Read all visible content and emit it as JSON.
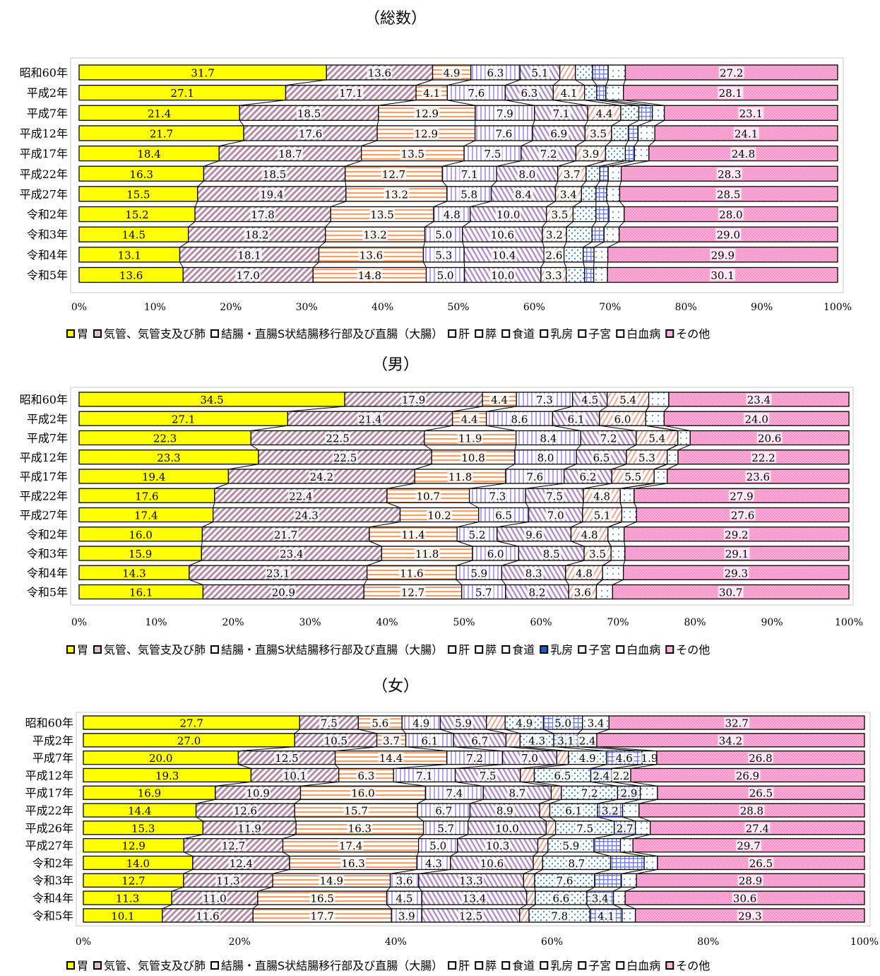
{
  "series_names": [
    "胃",
    "気管、気管支及び肺",
    "結腸・直腸S状結腸移行部及び直腸（大腸）",
    "肝",
    "膵",
    "食道",
    "乳房",
    "子宮",
    "白血病",
    "その他"
  ],
  "series_colors": [
    "#ffff00",
    "#ddbfd2",
    "#ffd5b8",
    "#e0d6ff",
    "#ecd9f2",
    "#fbe0d6",
    "#c9dcf7",
    "#d7e5ff",
    "#f4f4f4",
    "#ffb3d9"
  ],
  "legend_swatch_colors": [
    [
      "#ffff00",
      "#ddbfd2",
      "#ffffff",
      "#ffffff",
      "#ffffff",
      "#ffffff",
      "#ffffff",
      "#ffffff",
      "#ffffff",
      "#ffb3d9"
    ],
    [
      "#ffff00",
      "#ddbfd2",
      "#ffffff",
      "#ffffff",
      "#ffffff",
      "#ffffff",
      "#1f5fbf",
      "#ffffff",
      "#ffffff",
      "#ffb3d9"
    ],
    [
      "#ffff00",
      "#ddbfd2",
      "#ffffff",
      "#ffffff",
      "#ffffff",
      "#ffffff",
      "#ffffff",
      "#ffffff",
      "#ffffff",
      "#ffb3d9"
    ]
  ],
  "chart_data": [
    {
      "type": "bar",
      "orientation": "horizontal-stacked-100",
      "title": "（総数）",
      "categories": [
        "昭和60年",
        "平成2年",
        "平成7年",
        "平成12年",
        "平成17年",
        "平成22年",
        "平成27年",
        "令和2年",
        "令和3年",
        "令和4年",
        "令和5年"
      ],
      "xlim": [
        0,
        100
      ],
      "xticks": [
        "0%",
        "10%",
        "20%",
        "30%",
        "40%",
        "50%",
        "60%",
        "70%",
        "80%",
        "90%",
        "100%"
      ],
      "legend_position": "bottom",
      "series": [
        {
          "name": "胃",
          "values": [
            31.7,
            27.1,
            21.4,
            21.7,
            18.4,
            16.3,
            15.5,
            15.2,
            14.5,
            13.1,
            13.6
          ],
          "labels": [
            "31.7",
            "27.1",
            "21.4",
            "21.7",
            "18.4",
            "16.3",
            "15.5",
            "15.2",
            "14.5",
            "13.1",
            "13.6"
          ]
        },
        {
          "name": "気管、気管支及び肺",
          "values": [
            13.6,
            17.1,
            18.5,
            17.6,
            18.7,
            18.5,
            19.4,
            17.8,
            18.2,
            18.1,
            17.0
          ],
          "labels": [
            "13.6",
            "17.1",
            "18.5",
            "17.6",
            "18.7",
            "18.5",
            "19.4",
            "17.8",
            "18.2",
            "18.1",
            "17.0"
          ]
        },
        {
          "name": "結腸・直腸S状結腸移行部及び直腸（大腸）",
          "values": [
            4.9,
            4.1,
            12.9,
            12.9,
            13.5,
            12.7,
            13.2,
            13.5,
            13.2,
            13.6,
            14.8
          ],
          "labels": [
            "4.9",
            "4.1",
            "12.9",
            "12.9",
            "13.5",
            "12.7",
            "13.2",
            "13.5",
            "13.2",
            "13.6",
            "14.8"
          ]
        },
        {
          "name": "肝",
          "values": [
            6.3,
            7.6,
            7.9,
            7.6,
            7.5,
            7.1,
            5.8,
            4.8,
            5.0,
            5.3,
            5.0
          ],
          "labels": [
            "6.3",
            "7.6",
            "7.9",
            "7.6",
            "7.5",
            "7.1",
            "5.8",
            "4.8",
            "5.0",
            "5.3",
            "5.0"
          ]
        },
        {
          "name": "膵",
          "values": [
            5.1,
            6.3,
            7.1,
            6.9,
            7.2,
            8.0,
            8.4,
            10.0,
            10.6,
            10.4,
            10.0
          ],
          "labels": [
            "5.1",
            "6.3",
            "7.1",
            "6.9",
            "7.2",
            "8.0",
            "8.4",
            "10.0",
            "10.6",
            "10.4",
            "10.0"
          ]
        },
        {
          "name": "食道",
          "values": [
            2.0,
            4.1,
            4.4,
            3.5,
            3.9,
            3.7,
            3.4,
            3.5,
            3.2,
            2.6,
            3.3
          ],
          "labels": [
            "",
            "4.1",
            "4.4",
            "3.5",
            "3.9",
            "3.7",
            "3.4",
            "3.5",
            "3.2",
            "2.6",
            "3.3"
          ]
        },
        {
          "name": "乳房",
          "values": [
            2.2,
            1.6,
            2.4,
            2.2,
            2.6,
            1.8,
            1.9,
            3.0,
            3.4,
            2.5,
            2.4
          ],
          "labels": [
            "",
            "",
            "",
            "",
            "",
            "",
            "",
            "",
            "",
            "",
            ""
          ]
        },
        {
          "name": "子宮",
          "values": [
            2.0,
            1.2,
            1.8,
            1.3,
            1.2,
            1.1,
            1.4,
            1.7,
            1.6,
            1.4,
            1.2
          ],
          "labels": [
            "",
            "",
            "",
            "",
            "",
            "",
            "",
            "",
            "",
            "",
            ""
          ]
        },
        {
          "name": "白血病",
          "values": [
            2.2,
            2.3,
            1.6,
            2.2,
            1.9,
            1.7,
            1.7,
            2.0,
            2.0,
            1.8,
            1.8
          ],
          "labels": [
            "",
            "",
            "",
            "",
            "",
            "",
            "",
            "",
            "",
            "",
            ""
          ]
        },
        {
          "name": "その他",
          "values": [
            27.2,
            28.1,
            23.1,
            24.1,
            24.8,
            28.3,
            28.5,
            28.0,
            29.0,
            29.9,
            30.1
          ],
          "labels": [
            "27.2",
            "28.1",
            "23.1",
            "24.1",
            "24.8",
            "28.3",
            "28.5",
            "28.0",
            "29.0",
            "29.9",
            "30.1"
          ]
        }
      ]
    },
    {
      "type": "bar",
      "orientation": "horizontal-stacked-100",
      "title": "（男）",
      "categories": [
        "昭和60年",
        "平成2年",
        "平成7年",
        "平成12年",
        "平成17年",
        "平成22年",
        "平成27年",
        "令和2年",
        "令和3年",
        "令和4年",
        "令和5年"
      ],
      "xlim": [
        0,
        100
      ],
      "xticks": [
        "0%",
        "10%",
        "20%",
        "30%",
        "40%",
        "50%",
        "60%",
        "70%",
        "80%",
        "90%",
        "100%"
      ],
      "legend_position": "bottom",
      "series": [
        {
          "name": "胃",
          "values": [
            34.5,
            27.1,
            22.3,
            23.3,
            19.4,
            17.6,
            17.4,
            16.0,
            15.9,
            14.3,
            16.1
          ],
          "labels": [
            "34.5",
            "27.1",
            "22.3",
            "23.3",
            "19.4",
            "17.6",
            "17.4",
            "16.0",
            "15.9",
            "14.3",
            "16.1"
          ]
        },
        {
          "name": "気管、気管支及び肺",
          "values": [
            17.9,
            21.4,
            22.5,
            22.5,
            24.2,
            22.4,
            24.3,
            21.7,
            23.4,
            23.1,
            20.9
          ],
          "labels": [
            "17.9",
            "21.4",
            "22.5",
            "22.5",
            "24.2",
            "22.4",
            "24.3",
            "21.7",
            "23.4",
            "23.1",
            "20.9"
          ]
        },
        {
          "name": "結腸・直腸S状結腸移行部及び直腸（大腸）",
          "values": [
            4.4,
            4.4,
            11.9,
            10.8,
            11.8,
            10.7,
            10.2,
            11.4,
            11.8,
            11.6,
            12.7
          ],
          "labels": [
            "4.4",
            "4.4",
            "11.9",
            "10.8",
            "11.8",
            "10.7",
            "10.2",
            "11.4",
            "11.8",
            "11.6",
            "12.7"
          ]
        },
        {
          "name": "肝",
          "values": [
            7.3,
            8.6,
            8.4,
            8.0,
            7.6,
            7.3,
            6.5,
            5.2,
            6.0,
            5.9,
            5.7
          ],
          "labels": [
            "7.3",
            "8.6",
            "8.4",
            "8.0",
            "7.6",
            "7.3",
            "6.5",
            "5.2",
            "6.0",
            "5.9",
            "5.7"
          ]
        },
        {
          "name": "膵",
          "values": [
            4.5,
            6.1,
            7.2,
            6.5,
            6.2,
            7.5,
            7.0,
            9.6,
            8.5,
            8.3,
            8.2
          ],
          "labels": [
            "4.5",
            "6.1",
            "7.2",
            "6.5",
            "6.2",
            "7.5",
            "7.0",
            "9.6",
            "8.5",
            "8.3",
            "8.2"
          ]
        },
        {
          "name": "食道",
          "values": [
            5.4,
            6.0,
            5.4,
            5.3,
            5.5,
            4.8,
            5.1,
            4.8,
            3.5,
            4.8,
            3.6
          ],
          "labels": [
            "5.4",
            "6.0",
            "5.4",
            "5.3",
            "5.5",
            "4.8",
            "5.1",
            "4.8",
            "3.5",
            "4.8",
            "3.6"
          ]
        },
        {
          "name": "乳房",
          "values": [
            0,
            0,
            0,
            0,
            0,
            0,
            0,
            0,
            0,
            0,
            0
          ],
          "labels": [
            "",
            "",
            "",
            "",
            "",
            "",
            "",
            "",
            "",
            "",
            ""
          ]
        },
        {
          "name": "子宮",
          "values": [
            0,
            0,
            0,
            0,
            0,
            0,
            0,
            0,
            0,
            0,
            0
          ],
          "labels": [
            "",
            "",
            "",
            "",
            "",
            "",
            "",
            "",
            "",
            "",
            ""
          ]
        },
        {
          "name": "白血病",
          "values": [
            2.6,
            2.4,
            1.6,
            1.4,
            1.7,
            1.8,
            1.9,
            2.1,
            1.8,
            2.7,
            2.1
          ],
          "labels": [
            "",
            "",
            "",
            "",
            "",
            "",
            "",
            "",
            "",
            "",
            ""
          ]
        },
        {
          "name": "その他",
          "values": [
            23.4,
            24.0,
            20.6,
            22.2,
            23.6,
            27.9,
            27.6,
            29.2,
            29.1,
            29.3,
            30.7
          ],
          "labels": [
            "23.4",
            "24.0",
            "20.6",
            "22.2",
            "23.6",
            "27.9",
            "27.6",
            "29.2",
            "29.1",
            "29.3",
            "30.7"
          ]
        }
      ]
    },
    {
      "type": "bar",
      "orientation": "horizontal-stacked-100",
      "title": "（女）",
      "categories": [
        "昭和60年",
        "平成2年",
        "平成7年",
        "平成12年",
        "平成17年",
        "平成22年",
        "平成26年",
        "平成27年",
        "令和2年",
        "令和3年",
        "令和4年",
        "令和5年"
      ],
      "xlim": [
        0,
        100
      ],
      "xticks": [
        "0%",
        "20%",
        "40%",
        "60%",
        "80%",
        "100%"
      ],
      "legend_position": "bottom",
      "series": [
        {
          "name": "胃",
          "values": [
            27.7,
            27.0,
            20.0,
            19.3,
            16.9,
            14.4,
            15.3,
            12.9,
            14.0,
            12.7,
            11.3,
            10.1
          ],
          "labels": [
            "27.7",
            "27.0",
            "20.0",
            "19.3",
            "16.9",
            "14.4",
            "15.3",
            "12.9",
            "14.0",
            "12.7",
            "11.3",
            "10.1"
          ]
        },
        {
          "name": "気管、気管支及び肺",
          "values": [
            7.5,
            10.5,
            12.5,
            10.1,
            10.9,
            12.6,
            11.9,
            12.7,
            12.4,
            11.3,
            11.0,
            11.6
          ],
          "labels": [
            "7.5",
            "10.5",
            "12.5",
            "10.1",
            "10.9",
            "12.6",
            "11.9",
            "12.7",
            "12.4",
            "11.3",
            "11.0",
            "11.6"
          ]
        },
        {
          "name": "結腸・直腸S状結腸移行部及び直腸（大腸）",
          "values": [
            5.6,
            3.7,
            14.4,
            6.3,
            16.0,
            15.7,
            16.3,
            17.4,
            16.3,
            14.9,
            16.5,
            17.7
          ],
          "labels": [
            "5.6",
            "3.7",
            "14.4",
            "6.3",
            "16.0",
            "15.7",
            "16.3",
            "17.4",
            "16.3",
            "14.9",
            "16.5",
            "17.7"
          ]
        },
        {
          "name": "肝",
          "values": [
            4.9,
            6.1,
            7.2,
            7.1,
            7.4,
            6.7,
            5.7,
            5.0,
            4.3,
            3.6,
            4.5,
            3.9
          ],
          "labels": [
            "4.9",
            "6.1",
            "7.2",
            "7.1",
            "7.4",
            "6.7",
            "5.7",
            "5.0",
            "4.3",
            "3.6",
            "4.5",
            "3.9"
          ]
        },
        {
          "name": "膵",
          "values": [
            5.9,
            6.7,
            7.0,
            7.5,
            8.7,
            8.9,
            10.0,
            10.3,
            10.6,
            13.3,
            13.4,
            12.5
          ],
          "labels": [
            "5.9",
            "6.7",
            "7.0",
            "7.5",
            "8.7",
            "8.9",
            "10.0",
            "10.3",
            "10.6",
            "13.3",
            "13.4",
            "12.5"
          ]
        },
        {
          "name": "食道",
          "values": [
            2.4,
            1.8,
            1.5,
            1.6,
            1.3,
            1.3,
            1.2,
            1.3,
            1.2,
            1.4,
            1.1,
            1.2
          ],
          "labels": [
            "",
            "",
            "",
            "",
            "",
            "",
            "",
            "",
            "",
            "",
            "",
            ""
          ]
        },
        {
          "name": "乳房",
          "values": [
            4.9,
            4.3,
            4.9,
            6.5,
            7.2,
            6.1,
            7.5,
            5.9,
            8.7,
            7.6,
            6.6,
            7.8
          ],
          "labels": [
            "4.9",
            "4.3",
            "4.9",
            "6.5",
            "7.2",
            "6.1",
            "7.5",
            "5.9",
            "8.7",
            "7.6",
            "6.6",
            "7.8"
          ]
        },
        {
          "name": "子宮",
          "values": [
            5.0,
            3.1,
            4.6,
            2.4,
            2.9,
            3.2,
            2.7,
            3.4,
            4.3,
            3.4,
            3.4,
            4.1
          ],
          "labels": [
            "5.0",
            "3.1",
            "4.6",
            "2.4",
            "2.9",
            "3.2",
            "2.7",
            "",
            "",
            "",
            "3.4",
            "4.1"
          ]
        },
        {
          "name": "白血病",
          "values": [
            3.4,
            2.4,
            1.9,
            2.2,
            2.2,
            2.1,
            1.9,
            1.6,
            1.7,
            1.9,
            1.5,
            1.7
          ],
          "labels": [
            "3.4",
            "2.4",
            "1.9",
            "2.2",
            "",
            "",
            "",
            "",
            "",
            "",
            "",
            ""
          ]
        },
        {
          "name": "その他",
          "values": [
            32.7,
            34.2,
            26.8,
            26.9,
            26.5,
            28.8,
            27.4,
            29.7,
            26.5,
            28.9,
            30.6,
            29.3
          ],
          "labels": [
            "32.7",
            "34.2",
            "26.8",
            "26.9",
            "26.5",
            "28.8",
            "27.4",
            "29.7",
            "26.5",
            "28.9",
            "30.6",
            "29.3"
          ]
        }
      ]
    }
  ]
}
